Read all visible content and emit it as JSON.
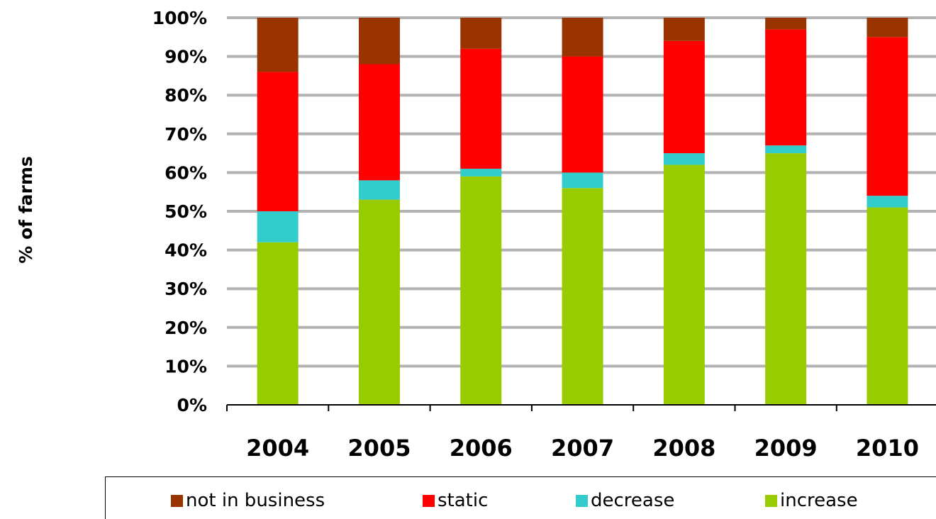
{
  "chart_data": {
    "type": "bar",
    "stacked": true,
    "title": "",
    "xlabel": "",
    "ylabel": "% of farms",
    "ylim": [
      0,
      100
    ],
    "y_ticks": [
      {
        "value": 0,
        "label": "0%"
      },
      {
        "value": 10,
        "label": "10%"
      },
      {
        "value": 20,
        "label": "20%"
      },
      {
        "value": 30,
        "label": "30%"
      },
      {
        "value": 40,
        "label": "40%"
      },
      {
        "value": 50,
        "label": "50%"
      },
      {
        "value": 60,
        "label": "60%"
      },
      {
        "value": 70,
        "label": "70%"
      },
      {
        "value": 80,
        "label": "80%"
      },
      {
        "value": 90,
        "label": "90%"
      },
      {
        "value": 100,
        "label": "100%"
      }
    ],
    "grid": true,
    "legend_position": "bottom",
    "categories": [
      "2004",
      "2005",
      "2006",
      "2007",
      "2008",
      "2009",
      "2010"
    ],
    "series": [
      {
        "name": "increase",
        "color": "#99CC00",
        "values": [
          42,
          53,
          59,
          56,
          62,
          65,
          51
        ]
      },
      {
        "name": "decrease",
        "color": "#33CCCC",
        "values": [
          8,
          5,
          2,
          4,
          3,
          2,
          3
        ]
      },
      {
        "name": "static",
        "color": "#FF0000",
        "values": [
          36,
          30,
          31,
          30,
          29,
          30,
          41
        ]
      },
      {
        "name": "not in business",
        "color": "#993300",
        "values": [
          14,
          12,
          8,
          10,
          6,
          3,
          5
        ]
      }
    ],
    "legend_order": [
      "not in business",
      "static",
      "decrease",
      "increase"
    ]
  }
}
